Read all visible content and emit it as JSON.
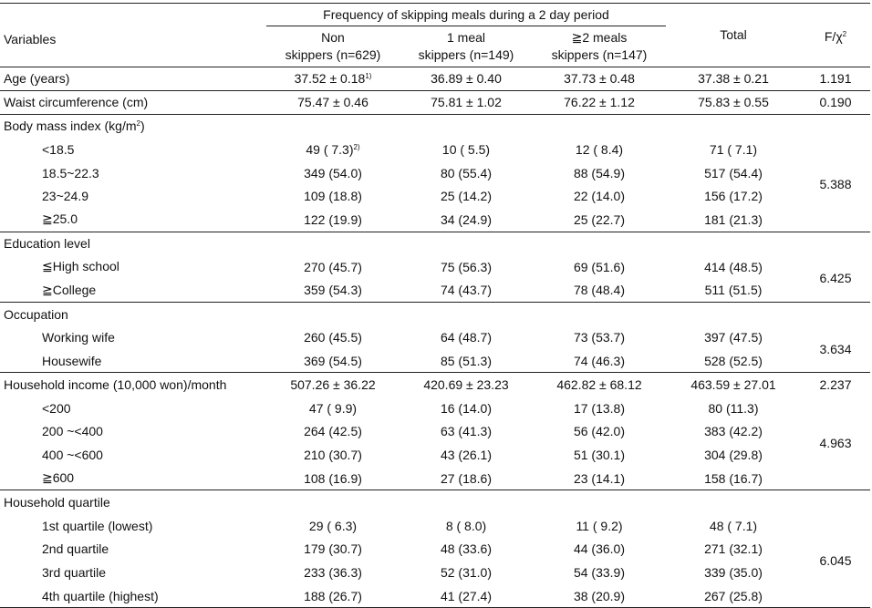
{
  "header": {
    "variables": "Variables",
    "group_title": "Frequency of skipping meals during a 2 day period",
    "col_non_1": "Non",
    "col_non_2": "skippers (n=629)",
    "col_one_1": "1 meal",
    "col_one_2": "skippers (n=149)",
    "col_two_1": "≧2 meals",
    "col_two_2": "skippers (n=147)",
    "total": "Total",
    "stat_base": "F/χ",
    "stat_sup": "2"
  },
  "rows": {
    "age": {
      "label": "Age (years)",
      "non": "37.52 ± 0.18",
      "non_sup": "1)",
      "one": "36.89 ± 0.40",
      "two": "37.73 ± 0.48",
      "total": "37.38 ± 0.21",
      "stat": "1.191"
    },
    "waist": {
      "label": "Waist circumference (cm)",
      "non": "75.47 ± 0.46",
      "one": "75.81 ± 1.02",
      "two": "76.22 ± 1.12",
      "total": "75.83 ± 0.55",
      "stat": "0.190"
    },
    "bmi": {
      "label": "Body mass index (kg/m",
      "label_sup": "2",
      "label_end": ")",
      "stat": "5.388",
      "items": [
        {
          "label": "<18.5",
          "non": "49 ( 7.3)",
          "non_sup": "2)",
          "one": "10 ( 5.5)",
          "two": "12 ( 8.4)",
          "total": "71 ( 7.1)"
        },
        {
          "label": "18.5~22.3",
          "non": "349 (54.0)",
          "one": "80 (55.4)",
          "two": "88 (54.9)",
          "total": "517 (54.4)"
        },
        {
          "label": "23~24.9",
          "non": "109 (18.8)",
          "one": "25 (14.2)",
          "two": "22 (14.0)",
          "total": "156 (17.2)"
        },
        {
          "label": "≧25.0",
          "non": "122 (19.9)",
          "one": "34 (24.9)",
          "two": "25 (22.7)",
          "total": "181 (21.3)"
        }
      ]
    },
    "edu": {
      "label": "Education level",
      "stat": "6.425",
      "items": [
        {
          "label": "≦High school",
          "non": "270 (45.7)",
          "one": "75 (56.3)",
          "two": "69 (51.6)",
          "total": "414 (48.5)"
        },
        {
          "label": "≧College",
          "non": "359 (54.3)",
          "one": "74 (43.7)",
          "two": "78 (48.4)",
          "total": "511 (51.5)"
        }
      ]
    },
    "occ": {
      "label": "Occupation",
      "stat": "3.634",
      "items": [
        {
          "label": "Working wife",
          "non": "260 (45.5)",
          "one": "64 (48.7)",
          "two": "73 (53.7)",
          "total": "397 (47.5)"
        },
        {
          "label": "Housewife",
          "non": "369 (54.5)",
          "one": "85 (51.3)",
          "two": "74 (46.3)",
          "total": "528 (52.5)"
        }
      ]
    },
    "income": {
      "label": "Household income (10,000 won)/month",
      "non": "507.26 ± 36.22",
      "one": "420.69 ± 23.23",
      "two": "462.82 ± 68.12",
      "total": "463.59 ± 27.01",
      "stat": "2.237",
      "stat2": "4.963",
      "items": [
        {
          "label": "<200",
          "non": "47 ( 9.9)",
          "one": "16 (14.0)",
          "two": "17 (13.8)",
          "total": "80 (11.3)"
        },
        {
          "label": "200 ~<400",
          "non": "264 (42.5)",
          "one": "63 (41.3)",
          "two": "56 (42.0)",
          "total": "383 (42.2)"
        },
        {
          "label": "400 ~<600",
          "non": "210 (30.7)",
          "one": "43 (26.1)",
          "two": "51 (30.1)",
          "total": "304 (29.8)"
        },
        {
          "label": "≧600",
          "non": "108 (16.9)",
          "one": "27 (18.6)",
          "two": "23 (14.1)",
          "total": "158 (16.7)"
        }
      ]
    },
    "quart": {
      "label": "Household quartile",
      "stat": "6.045",
      "items": [
        {
          "label": "1st quartile (lowest)",
          "non": "29 ( 6.3)",
          "one": "8 ( 8.0)",
          "two": "11 ( 9.2)",
          "total": "48 ( 7.1)"
        },
        {
          "label": "2nd quartile",
          "non": "179 (30.7)",
          "one": "48 (33.6)",
          "two": "44 (36.0)",
          "total": "271 (32.1)"
        },
        {
          "label": "3rd quartile",
          "non": "233 (36.3)",
          "one": "52 (31.0)",
          "two": "54 (33.9)",
          "total": "339 (35.0)"
        },
        {
          "label": "4th quartile (highest)",
          "non": "188 (26.7)",
          "one": "41 (27.4)",
          "two": "38 (20.9)",
          "total": "267 (25.8)"
        }
      ]
    }
  }
}
